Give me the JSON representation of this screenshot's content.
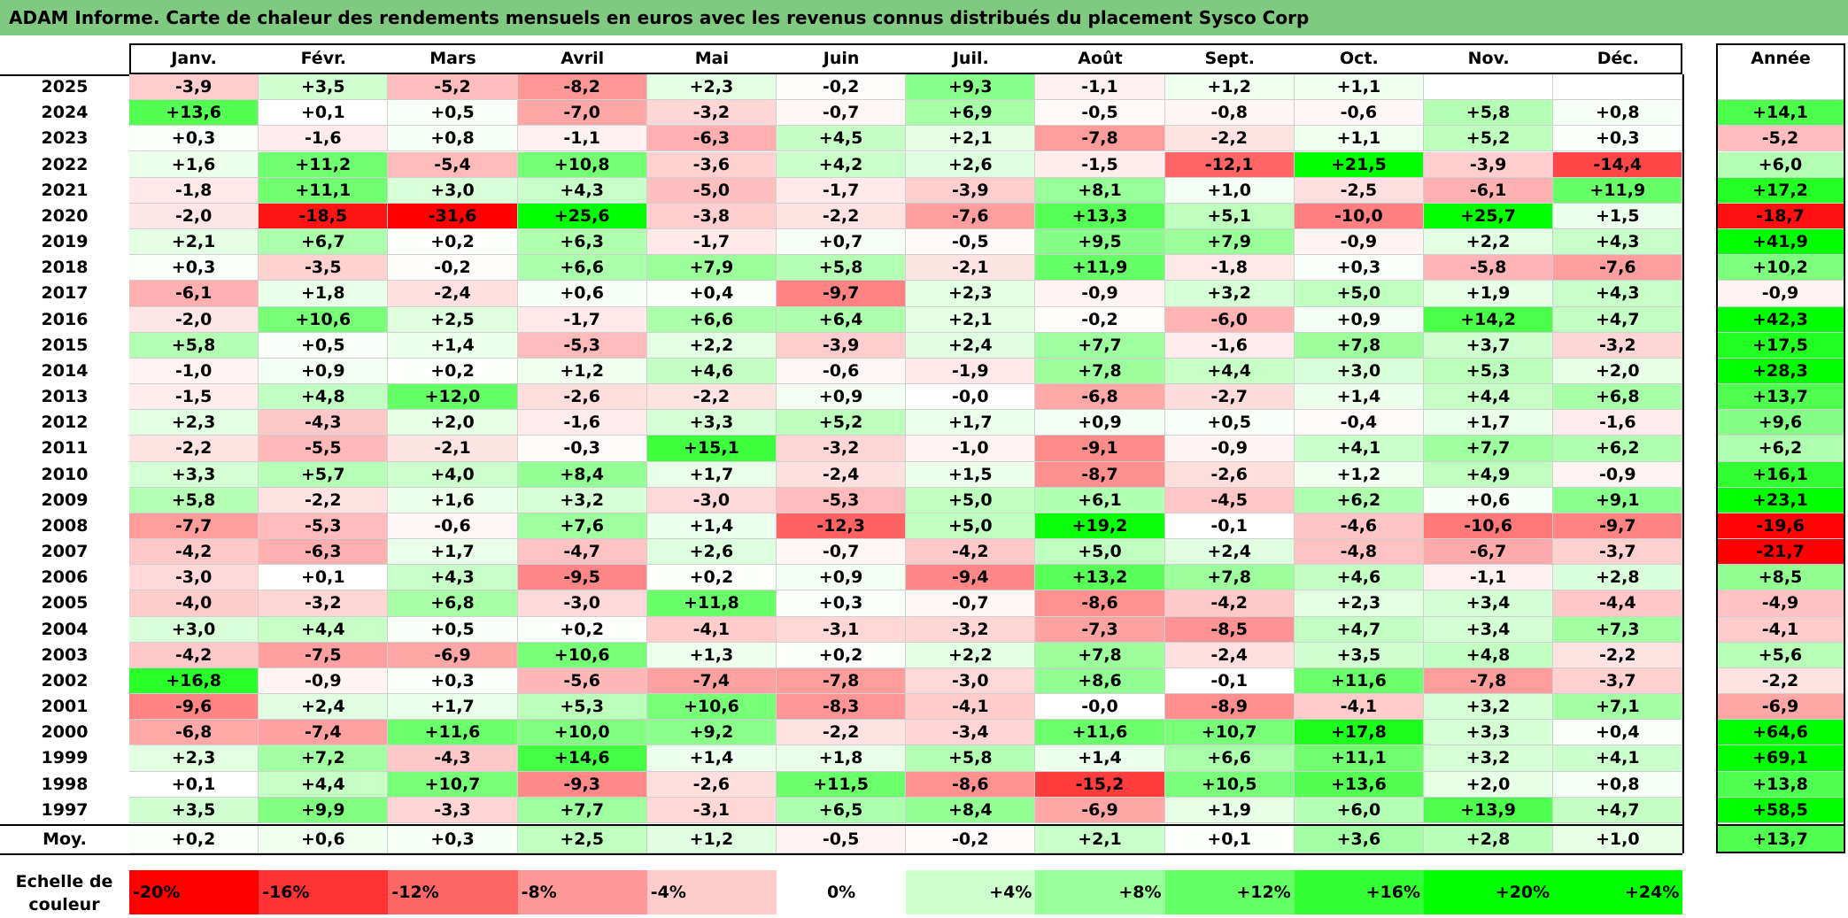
{
  "title": "ADAM Informe. Carte de chaleur des rendements mensuels en euros avec les revenus connus distribués du placement Sysco Corp",
  "chart_data": {
    "type": "heatmap",
    "title": "ADAM Informe. Carte de chaleur des rendements mensuels en euros avec les revenus connus distribués du placement Sysco Corp",
    "columns": [
      "Janv.",
      "Févr.",
      "Mars",
      "Avril",
      "Mai",
      "Juin",
      "Juil.",
      "Août",
      "Sept.",
      "Oct.",
      "Nov.",
      "Déc."
    ],
    "year_column_label": "Année",
    "rows": [
      {
        "year": "2025",
        "values": [
          "-3,9",
          "+3,5",
          "-5,2",
          "-8,2",
          "+2,3",
          "-0,2",
          "+9,3",
          "-1,1",
          "+1,2",
          "+1,1",
          "",
          ""
        ],
        "annual": ""
      },
      {
        "year": "2024",
        "values": [
          "+13,6",
          "+0,1",
          "+0,5",
          "-7,0",
          "-3,2",
          "-0,7",
          "+6,9",
          "-0,5",
          "-0,8",
          "-0,6",
          "+5,8",
          "+0,8"
        ],
        "annual": "+14,1"
      },
      {
        "year": "2023",
        "values": [
          "+0,3",
          "-1,6",
          "+0,8",
          "-1,1",
          "-6,3",
          "+4,5",
          "+2,1",
          "-7,8",
          "-2,2",
          "+1,1",
          "+5,2",
          "+0,3"
        ],
        "annual": "-5,2"
      },
      {
        "year": "2022",
        "values": [
          "+1,6",
          "+11,2",
          "-5,4",
          "+10,8",
          "-3,6",
          "+4,2",
          "+2,6",
          "-1,5",
          "-12,1",
          "+21,5",
          "-3,9",
          "-14,4"
        ],
        "annual": "+6,0"
      },
      {
        "year": "2021",
        "values": [
          "-1,8",
          "+11,1",
          "+3,0",
          "+4,3",
          "-5,0",
          "-1,7",
          "-3,9",
          "+8,1",
          "+1,0",
          "-2,5",
          "-6,1",
          "+11,9"
        ],
        "annual": "+17,2"
      },
      {
        "year": "2020",
        "values": [
          "-2,0",
          "-18,5",
          "-31,6",
          "+25,6",
          "-3,8",
          "-2,2",
          "-7,6",
          "+13,3",
          "+5,1",
          "-10,0",
          "+25,7",
          "+1,5"
        ],
        "annual": "-18,7"
      },
      {
        "year": "2019",
        "values": [
          "+2,1",
          "+6,7",
          "+0,2",
          "+6,3",
          "-1,7",
          "+0,7",
          "-0,5",
          "+9,5",
          "+7,9",
          "-0,9",
          "+2,2",
          "+4,3"
        ],
        "annual": "+41,9"
      },
      {
        "year": "2018",
        "values": [
          "+0,3",
          "-3,5",
          "-0,2",
          "+6,6",
          "+7,9",
          "+5,8",
          "-2,1",
          "+11,9",
          "-1,8",
          "+0,3",
          "-5,8",
          "-7,6"
        ],
        "annual": "+10,2"
      },
      {
        "year": "2017",
        "values": [
          "-6,1",
          "+1,8",
          "-2,4",
          "+0,6",
          "+0,4",
          "-9,7",
          "+2,3",
          "-0,9",
          "+3,2",
          "+5,0",
          "+1,9",
          "+4,3"
        ],
        "annual": "-0,9"
      },
      {
        "year": "2016",
        "values": [
          "-2,0",
          "+10,6",
          "+2,5",
          "-1,7",
          "+6,6",
          "+6,4",
          "+2,1",
          "-0,2",
          "-6,0",
          "+0,9",
          "+14,2",
          "+4,7"
        ],
        "annual": "+42,3"
      },
      {
        "year": "2015",
        "values": [
          "+5,8",
          "+0,5",
          "+1,4",
          "-5,3",
          "+2,2",
          "-3,9",
          "+2,4",
          "+7,7",
          "-1,6",
          "+7,8",
          "+3,7",
          "-3,2"
        ],
        "annual": "+17,5"
      },
      {
        "year": "2014",
        "values": [
          "-1,0",
          "+0,9",
          "+0,2",
          "+1,2",
          "+4,6",
          "-0,6",
          "-1,9",
          "+7,8",
          "+4,4",
          "+3,0",
          "+5,3",
          "+2,0"
        ],
        "annual": "+28,3"
      },
      {
        "year": "2013",
        "values": [
          "-1,5",
          "+4,8",
          "+12,0",
          "-2,6",
          "-2,2",
          "+0,9",
          "-0,0",
          "-6,8",
          "-2,7",
          "+1,4",
          "+4,4",
          "+6,8"
        ],
        "annual": "+13,7"
      },
      {
        "year": "2012",
        "values": [
          "+2,3",
          "-4,3",
          "+2,0",
          "-1,6",
          "+3,3",
          "+5,2",
          "+1,7",
          "+0,9",
          "+0,5",
          "-0,4",
          "+1,7",
          "-1,6"
        ],
        "annual": "+9,6"
      },
      {
        "year": "2011",
        "values": [
          "-2,2",
          "-5,5",
          "-2,1",
          "-0,3",
          "+15,1",
          "-3,2",
          "-1,0",
          "-9,1",
          "-0,9",
          "+4,1",
          "+7,7",
          "+6,2"
        ],
        "annual": "+6,2"
      },
      {
        "year": "2010",
        "values": [
          "+3,3",
          "+5,7",
          "+4,0",
          "+8,4",
          "+1,7",
          "-2,4",
          "+1,5",
          "-8,7",
          "-2,6",
          "+1,2",
          "+4,9",
          "-0,9"
        ],
        "annual": "+16,1"
      },
      {
        "year": "2009",
        "values": [
          "+5,8",
          "-2,2",
          "+1,6",
          "+3,2",
          "-3,0",
          "-5,3",
          "+5,0",
          "+6,1",
          "-4,5",
          "+6,2",
          "+0,6",
          "+9,1"
        ],
        "annual": "+23,1"
      },
      {
        "year": "2008",
        "values": [
          "-7,7",
          "-5,3",
          "-0,6",
          "+7,6",
          "+1,4",
          "-12,3",
          "+5,0",
          "+19,2",
          "-0,1",
          "-4,6",
          "-10,6",
          "-9,7"
        ],
        "annual": "-19,6"
      },
      {
        "year": "2007",
        "values": [
          "-4,2",
          "-6,3",
          "+1,7",
          "-4,7",
          "+2,6",
          "-0,7",
          "-4,2",
          "+5,0",
          "+2,4",
          "-4,8",
          "-6,7",
          "-3,7"
        ],
        "annual": "-21,7"
      },
      {
        "year": "2006",
        "values": [
          "-3,0",
          "+0,1",
          "+4,3",
          "-9,5",
          "+0,2",
          "+0,9",
          "-9,4",
          "+13,2",
          "+7,8",
          "+4,6",
          "-1,1",
          "+2,8"
        ],
        "annual": "+8,5"
      },
      {
        "year": "2005",
        "values": [
          "-4,0",
          "-3,2",
          "+6,8",
          "-3,0",
          "+11,8",
          "+0,3",
          "-0,7",
          "-8,6",
          "-4,2",
          "+2,3",
          "+3,4",
          "-4,4"
        ],
        "annual": "-4,9"
      },
      {
        "year": "2004",
        "values": [
          "+3,0",
          "+4,4",
          "+0,5",
          "+0,2",
          "-4,1",
          "-3,1",
          "-3,2",
          "-7,3",
          "-8,5",
          "+4,7",
          "+3,4",
          "+7,3"
        ],
        "annual": "-4,1"
      },
      {
        "year": "2003",
        "values": [
          "-4,2",
          "-7,5",
          "-6,9",
          "+10,6",
          "+1,3",
          "+0,2",
          "+2,2",
          "+7,8",
          "-2,4",
          "+3,5",
          "+4,8",
          "-2,2"
        ],
        "annual": "+5,6"
      },
      {
        "year": "2002",
        "values": [
          "+16,8",
          "-0,9",
          "+0,3",
          "-5,6",
          "-7,4",
          "-7,8",
          "-3,0",
          "+8,6",
          "-0,1",
          "+11,6",
          "-7,8",
          "-3,7"
        ],
        "annual": "-2,2"
      },
      {
        "year": "2001",
        "values": [
          "-9,6",
          "+2,4",
          "+1,7",
          "+5,3",
          "+10,6",
          "-8,3",
          "-4,1",
          "-0,0",
          "-8,9",
          "-4,1",
          "+3,2",
          "+7,1"
        ],
        "annual": "-6,9"
      },
      {
        "year": "2000",
        "values": [
          "-6,8",
          "-7,4",
          "+11,6",
          "+10,0",
          "+9,2",
          "-2,2",
          "-3,4",
          "+11,6",
          "+10,7",
          "+17,8",
          "+3,3",
          "+0,4"
        ],
        "annual": "+64,6"
      },
      {
        "year": "1999",
        "values": [
          "+2,3",
          "+7,2",
          "-4,3",
          "+14,6",
          "+1,4",
          "+1,8",
          "+5,8",
          "+1,4",
          "+6,6",
          "+11,1",
          "+3,2",
          "+4,1"
        ],
        "annual": "+69,1"
      },
      {
        "year": "1998",
        "values": [
          "+0,1",
          "+4,4",
          "+10,7",
          "-9,3",
          "-2,6",
          "+11,5",
          "-8,6",
          "-15,2",
          "+10,5",
          "+13,6",
          "+2,0",
          "+0,8"
        ],
        "annual": "+13,8"
      },
      {
        "year": "1997",
        "values": [
          "+3,5",
          "+9,9",
          "-3,3",
          "+7,7",
          "-3,1",
          "+6,5",
          "+8,4",
          "-6,9",
          "+1,9",
          "+6,0",
          "+13,9",
          "+4,7"
        ],
        "annual": "+58,5"
      }
    ],
    "average": {
      "label": "Moy.",
      "values": [
        "+0,2",
        "+0,6",
        "+0,3",
        "+2,5",
        "+1,2",
        "-0,5",
        "-0,2",
        "+2,1",
        "+0,1",
        "+3,6",
        "+2,8",
        "+1,0"
      ],
      "annual": "+13,7"
    },
    "color_scale": {
      "label": "Echelle de couleur",
      "stops": [
        "-20%",
        "-16%",
        "-12%",
        "-8%",
        "-4%",
        "0%",
        "+4%",
        "+8%",
        "+12%",
        "+16%",
        "+20%",
        "+24%"
      ],
      "negative_color": "#ff0000",
      "positive_color": "#00ff00",
      "neutral_color": "#ffffff"
    }
  }
}
